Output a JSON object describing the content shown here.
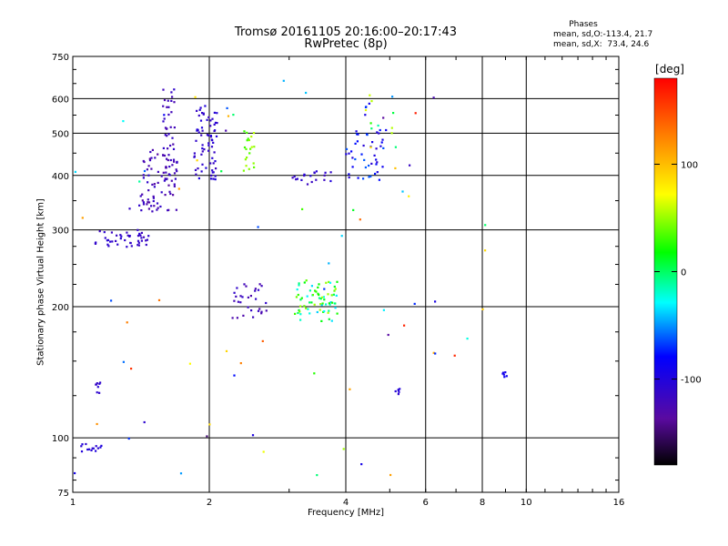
{
  "chart_data": {
    "type": "scatter",
    "title": "Tromsø 20161105 20:16:00–20:17:43",
    "subtitle": "RwPretec (8p)",
    "xlabel": "Frequency [MHz]",
    "ylabel": "Stationary phase Virtual Height [km]",
    "x_scale": "log",
    "y_scale": "log",
    "xlim": [
      1,
      16
    ],
    "ylim": [
      75,
      750
    ],
    "x_ticks": [
      1,
      2,
      4,
      6,
      8,
      10,
      16
    ],
    "x_tick_labels": [
      "1",
      "2",
      "4",
      "6",
      "8",
      "10",
      "16"
    ],
    "y_ticks": [
      75,
      100,
      200,
      300,
      400,
      500,
      600,
      750
    ],
    "y_tick_labels": [
      "75",
      "100",
      "200",
      "300",
      "400",
      "500",
      "600",
      "750"
    ],
    "grid": true,
    "colorbar": {
      "label": "[deg]",
      "range": [
        -180,
        180
      ],
      "ticks": [
        100,
        0,
        -100
      ],
      "tick_labels": [
        "100",
        "0",
        "-100"
      ],
      "colors": [
        "#000000",
        "#6a0ac8",
        "#0000ff",
        "#00ffff",
        "#00ff00",
        "#ffff00",
        "#ff8000",
        "#ff0000"
      ]
    },
    "phases": {
      "heading": "Phases",
      "line_o": "mean, sd,O:-113.4, 21.7",
      "line_x": "mean, sd,X:  73.4, 24.6"
    },
    "clusters": [
      {
        "f": [
          1.12,
          1.47
        ],
        "h": [
          272,
          300
        ],
        "n": 45,
        "phase": [
          -120,
          -105
        ]
      },
      {
        "f": [
          1.4,
          1.7
        ],
        "h": [
          330,
          460
        ],
        "n": 80,
        "phase": [
          -135,
          -110
        ]
      },
      {
        "f": [
          1.58,
          1.68
        ],
        "h": [
          420,
          640
        ],
        "n": 35,
        "phase": [
          -130,
          -110
        ]
      },
      {
        "f": [
          1.85,
          2.08
        ],
        "h": [
          390,
          580
        ],
        "n": 70,
        "phase": [
          -120,
          -100
        ]
      },
      {
        "f": [
          2.38,
          2.52
        ],
        "h": [
          410,
          520
        ],
        "n": 20,
        "phase": [
          30,
          60
        ]
      },
      {
        "f": [
          2.25,
          2.75
        ],
        "h": [
          188,
          230
        ],
        "n": 30,
        "phase": [
          -130,
          -110
        ]
      },
      {
        "f": [
          3.1,
          3.85
        ],
        "h": [
          185,
          230
        ],
        "n": 70,
        "phase": [
          -40,
          60
        ]
      },
      {
        "f": [
          3.05,
          3.75
        ],
        "h": [
          380,
          410
        ],
        "n": 20,
        "phase": [
          -120,
          -100
        ]
      },
      {
        "f": [
          4.0,
          4.85
        ],
        "h": [
          390,
          510
        ],
        "n": 40,
        "phase": [
          -110,
          -60
        ]
      },
      {
        "f": [
          4.4,
          5.2
        ],
        "h": [
          460,
          610
        ],
        "n": 20,
        "phase": [
          -100,
          100
        ]
      },
      {
        "f": [
          1.03,
          1.16
        ],
        "h": [
          93,
          97
        ],
        "n": 14,
        "phase": [
          -110,
          -100
        ]
      },
      {
        "f": [
          1.12,
          1.18
        ],
        "h": [
          126,
          134
        ],
        "n": 8,
        "phase": [
          -115,
          -105
        ]
      },
      {
        "f": [
          8.85,
          9.05
        ],
        "h": [
          138,
          142
        ],
        "n": 6,
        "phase": [
          -95,
          -85
        ]
      },
      {
        "f": [
          5.05,
          5.3
        ],
        "h": [
          126,
          130
        ],
        "n": 6,
        "phase": [
          -110,
          -100
        ]
      },
      {
        "f": [
          1.0,
          8.2
        ],
        "h": [
          80,
          680
        ],
        "n": 70,
        "phase": [
          -150,
          170
        ]
      }
    ]
  }
}
